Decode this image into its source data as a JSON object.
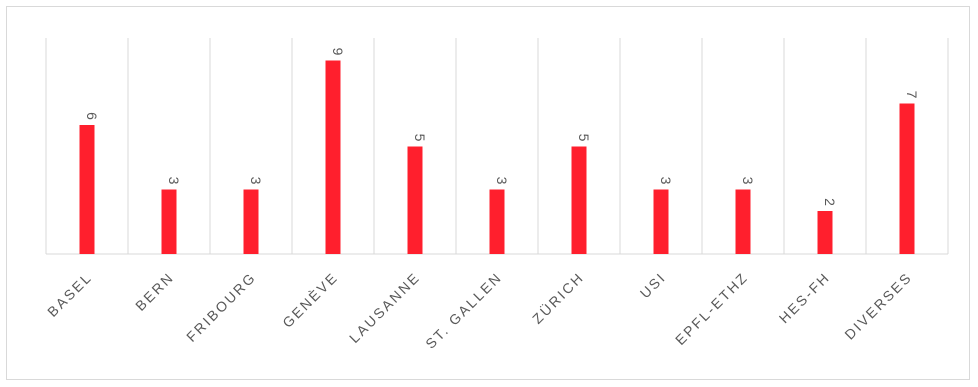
{
  "chart_data": {
    "type": "bar",
    "categories": [
      "BASEL",
      "BERN",
      "FRIBOURG",
      "GENÈVE",
      "LAUSANNE",
      "ST. GALLEN",
      "ZÜRICH",
      "USI",
      "EPFL-ETHZ",
      "HES-FH",
      "DIVERSES"
    ],
    "values": [
      6,
      3,
      3,
      9,
      5,
      3,
      5,
      3,
      3,
      2,
      7
    ],
    "ylim": [
      0,
      10
    ],
    "grid": "vertical separators",
    "legend": "none",
    "bar_color": "#ff1f2d",
    "data_labels": true
  }
}
